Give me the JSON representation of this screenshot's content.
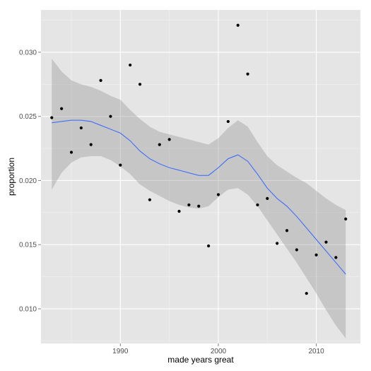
{
  "chart_data": {
    "type": "scatter",
    "xlabel": "made years great",
    "ylabel": "proportion",
    "xlim": [
      1981.9,
      2014.5
    ],
    "ylim": [
      0.0073,
      0.0333
    ],
    "x_ticks": [
      1990,
      2000,
      2010
    ],
    "x_tick_labels": [
      "1990",
      "2000",
      "2010"
    ],
    "y_ticks": [
      0.01,
      0.015,
      0.02,
      0.025,
      0.03
    ],
    "y_tick_labels": [
      "0.010",
      "0.015",
      "0.020",
      "0.025",
      "0.030"
    ],
    "grid": true,
    "legend": "none",
    "points": {
      "x": [
        1983,
        1984,
        1985,
        1986,
        1987,
        1988,
        1989,
        1990,
        1991,
        1992,
        1993,
        1994,
        1995,
        1996,
        1997,
        1998,
        1999,
        2000,
        2001,
        2002,
        2003,
        2004,
        2005,
        2006,
        2007,
        2008,
        2009,
        2010,
        2011,
        2012,
        2013
      ],
      "y": [
        0.0249,
        0.0256,
        0.0222,
        0.0241,
        0.0228,
        0.0278,
        0.025,
        0.0212,
        0.029,
        0.0275,
        0.0185,
        0.0228,
        0.0232,
        0.0176,
        0.0181,
        0.018,
        0.0149,
        0.0189,
        0.0246,
        0.0321,
        0.0283,
        0.0181,
        0.0186,
        0.0151,
        0.0161,
        0.0146,
        0.0112,
        0.0142,
        0.0152,
        0.014,
        0.017
      ]
    },
    "smooth": {
      "x": [
        1983,
        1984,
        1985,
        1986,
        1987,
        1988,
        1989,
        1990,
        1991,
        1992,
        1993,
        1994,
        1995,
        1996,
        1997,
        1998,
        1999,
        2000,
        2001,
        2002,
        2003,
        2004,
        2005,
        2006,
        2007,
        2008,
        2009,
        2010,
        2011,
        2012,
        2013
      ],
      "y": [
        0.0245,
        0.0246,
        0.0247,
        0.0247,
        0.0246,
        0.0243,
        0.024,
        0.0237,
        0.0231,
        0.0223,
        0.0217,
        0.0213,
        0.021,
        0.0208,
        0.0206,
        0.0204,
        0.0204,
        0.021,
        0.0217,
        0.022,
        0.0215,
        0.0205,
        0.0194,
        0.0186,
        0.018,
        0.0172,
        0.0163,
        0.0154,
        0.0145,
        0.0136,
        0.0127
      ],
      "lower": [
        0.0193,
        0.0206,
        0.0214,
        0.0218,
        0.0219,
        0.0219,
        0.0216,
        0.0211,
        0.0205,
        0.0197,
        0.0192,
        0.0188,
        0.0184,
        0.0181,
        0.0179,
        0.0178,
        0.018,
        0.0187,
        0.0193,
        0.0194,
        0.0189,
        0.018,
        0.0169,
        0.0158,
        0.0147,
        0.0136,
        0.0124,
        0.0112,
        0.0099,
        0.0087,
        0.0077
      ],
      "upper": [
        0.0295,
        0.0285,
        0.0278,
        0.0275,
        0.0273,
        0.027,
        0.0266,
        0.0263,
        0.0255,
        0.0248,
        0.0242,
        0.0238,
        0.0236,
        0.0234,
        0.0232,
        0.023,
        0.0228,
        0.0233,
        0.0241,
        0.0247,
        0.0242,
        0.023,
        0.0219,
        0.0212,
        0.0207,
        0.0202,
        0.0198,
        0.0192,
        0.0186,
        0.0181,
        0.0177
      ]
    },
    "colors": {
      "panel": "#e5e5e5",
      "grid_major": "#ffffff",
      "grid_minor": "#f2f2f2",
      "points": "#000000",
      "line": "#3366ff",
      "ribbon": "#999999"
    }
  }
}
